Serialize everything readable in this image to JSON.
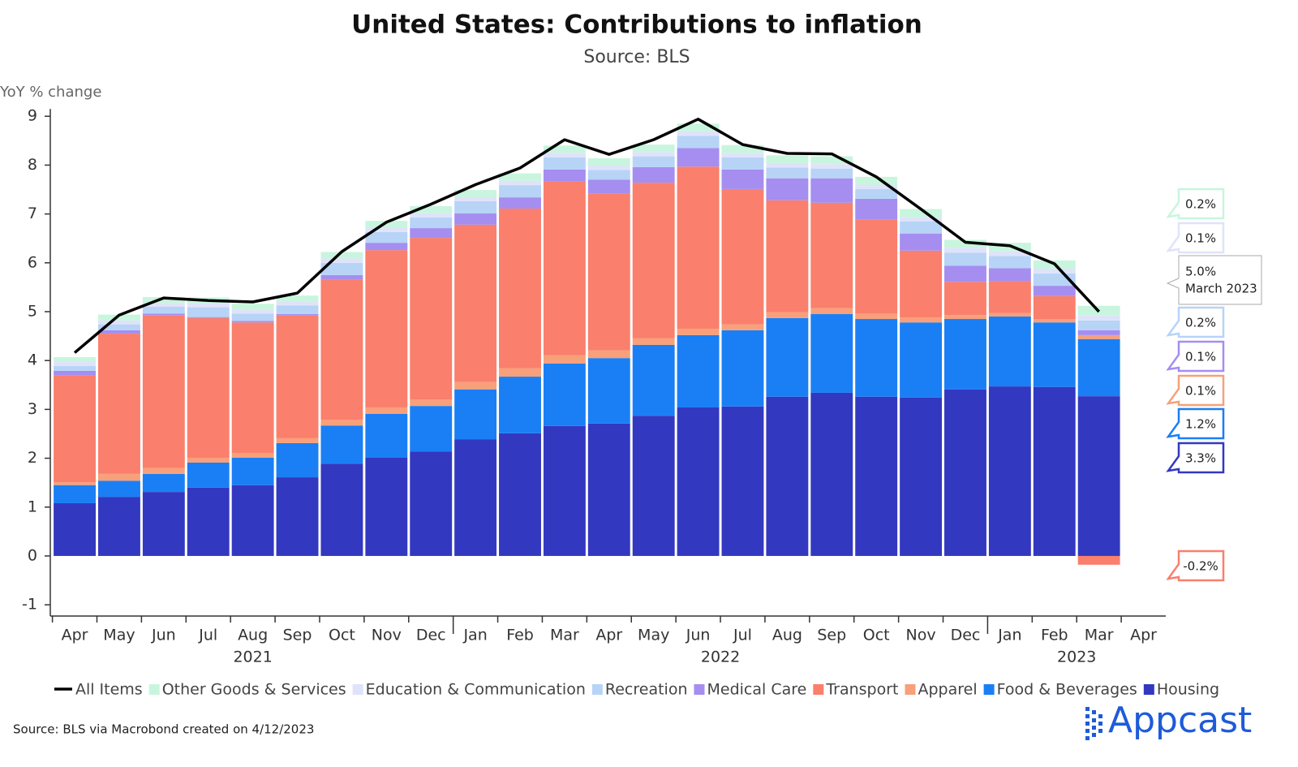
{
  "chart_data": {
    "type": "bar",
    "title": "United States: Contributions to inflation",
    "subtitle": "Source: BLS",
    "y_label": "YoY % change",
    "source": "Source: BLS via Macrobond created on 4/12/2023",
    "logo": "Appcast",
    "categories": [
      "Apr",
      "May",
      "Jun",
      "Jul",
      "Aug",
      "Sep",
      "Oct",
      "Nov",
      "Dec",
      "Jan",
      "Feb",
      "Mar",
      "Apr",
      "May",
      "Jun",
      "Jul",
      "Aug",
      "Sep",
      "Oct",
      "Nov",
      "Dec",
      "Jan",
      "Feb",
      "Mar",
      "Apr"
    ],
    "years": [
      "2021",
      "2022",
      "2023"
    ],
    "ylim": [
      -1.2,
      9.15
    ],
    "yticks": [
      -1,
      0,
      1,
      2,
      3,
      4,
      5,
      6,
      7,
      8,
      9
    ],
    "series": [
      {
        "name": "All Items",
        "type": "line",
        "color": "#000000",
        "end_label": "5.0%",
        "end_label_date": "March 2023",
        "values": [
          4.16,
          4.93,
          5.28,
          5.23,
          5.2,
          5.38,
          6.23,
          6.83,
          7.2,
          7.6,
          7.94,
          8.52,
          8.22,
          8.52,
          8.94,
          8.42,
          8.24,
          8.23,
          7.76,
          7.1,
          6.42,
          6.35,
          5.98,
          5.0,
          null
        ]
      },
      {
        "name": "Other Goods & Services",
        "type": "bar",
        "color": "#c8f5de",
        "end_label": "0.2%",
        "values": [
          0.1,
          0.12,
          0.12,
          0.12,
          0.12,
          0.12,
          0.13,
          0.14,
          0.14,
          0.14,
          0.15,
          0.15,
          0.15,
          0.15,
          0.16,
          0.16,
          0.16,
          0.16,
          0.16,
          0.16,
          0.16,
          0.17,
          0.17,
          0.2,
          null
        ]
      },
      {
        "name": "Education & Communication",
        "type": "bar",
        "color": "#dfe3fa",
        "end_label": "0.1%",
        "values": [
          0.08,
          0.08,
          0.08,
          0.08,
          0.08,
          0.08,
          0.09,
          0.09,
          0.09,
          0.09,
          0.09,
          0.09,
          0.09,
          0.09,
          0.09,
          0.09,
          0.09,
          0.09,
          0.09,
          0.09,
          0.1,
          0.1,
          0.1,
          0.1,
          null
        ]
      },
      {
        "name": "Recreation",
        "type": "bar",
        "color": "#b7d4f7",
        "end_label": "0.2%",
        "values": [
          0.1,
          0.12,
          0.14,
          0.2,
          0.15,
          0.18,
          0.25,
          0.22,
          0.22,
          0.25,
          0.25,
          0.25,
          0.2,
          0.22,
          0.25,
          0.25,
          0.22,
          0.2,
          0.2,
          0.25,
          0.27,
          0.25,
          0.25,
          0.2,
          null
        ]
      },
      {
        "name": "Medical Care",
        "type": "bar",
        "color": "#a58ef0",
        "end_label": "0.1%",
        "values": [
          0.1,
          0.07,
          0.03,
          0.02,
          0.03,
          0.03,
          0.1,
          0.15,
          0.2,
          0.23,
          0.23,
          0.25,
          0.28,
          0.32,
          0.38,
          0.4,
          0.45,
          0.5,
          0.43,
          0.35,
          0.33,
          0.26,
          0.21,
          0.1,
          null
        ]
      },
      {
        "name": "Transport",
        "type": "bar",
        "color": "#fa7f6d",
        "end_label": "-0.2%",
        "values": [
          2.18,
          2.87,
          3.13,
          2.86,
          2.67,
          2.51,
          2.86,
          3.22,
          3.31,
          3.22,
          3.27,
          3.55,
          3.21,
          3.18,
          3.32,
          2.77,
          2.29,
          2.16,
          1.92,
          1.37,
          0.68,
          0.66,
          0.47,
          -0.18,
          null
        ]
      },
      {
        "name": "Apparel",
        "type": "bar",
        "color": "#f7a07a",
        "end_label": "0.1%",
        "values": [
          0.06,
          0.14,
          0.12,
          0.1,
          0.1,
          0.1,
          0.12,
          0.13,
          0.13,
          0.15,
          0.17,
          0.17,
          0.16,
          0.14,
          0.13,
          0.12,
          0.12,
          0.12,
          0.11,
          0.1,
          0.08,
          0.07,
          0.07,
          0.08,
          null
        ]
      },
      {
        "name": "Food & Beverages",
        "type": "bar",
        "color": "#1a7ff5",
        "end_label": "1.2%",
        "values": [
          0.37,
          0.33,
          0.37,
          0.51,
          0.56,
          0.7,
          0.78,
          0.9,
          0.93,
          1.02,
          1.16,
          1.28,
          1.34,
          1.45,
          1.48,
          1.56,
          1.61,
          1.61,
          1.59,
          1.54,
          1.44,
          1.43,
          1.32,
          1.17,
          null
        ]
      },
      {
        "name": "Housing",
        "type": "bar",
        "color": "#3338c0",
        "end_label": "3.3%",
        "values": [
          1.08,
          1.21,
          1.31,
          1.4,
          1.45,
          1.61,
          1.89,
          2.01,
          2.14,
          2.39,
          2.51,
          2.66,
          2.71,
          2.87,
          3.04,
          3.06,
          3.26,
          3.34,
          3.26,
          3.24,
          3.41,
          3.47,
          3.46,
          3.27,
          null
        ]
      }
    ]
  }
}
